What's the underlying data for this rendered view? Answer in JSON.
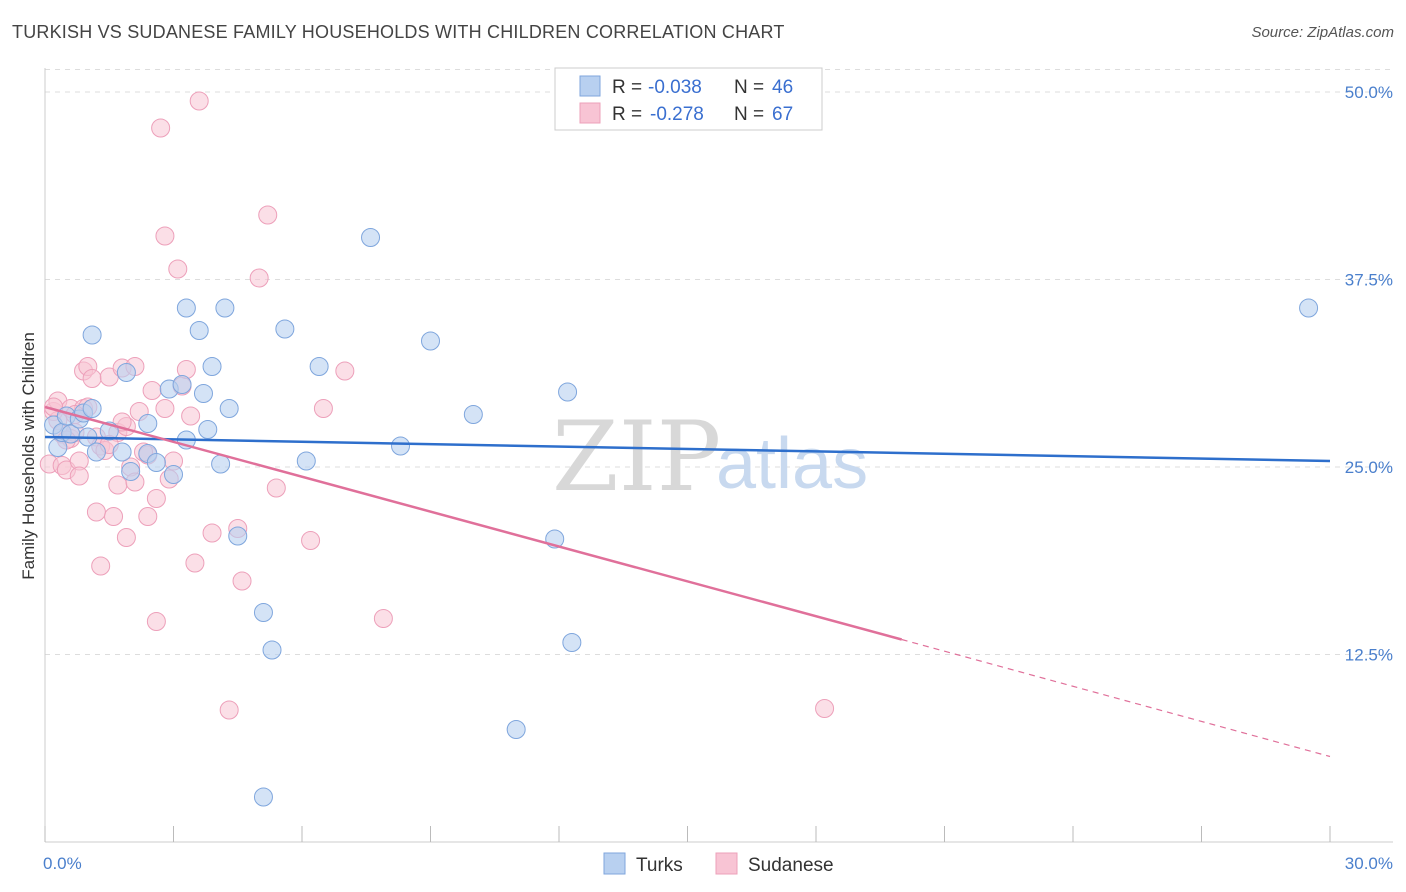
{
  "title": "TURKISH VS SUDANESE FAMILY HOUSEHOLDS WITH CHILDREN CORRELATION CHART",
  "source": "Source: ZipAtlas.com",
  "watermark": {
    "zip": "ZIP",
    "atlas": "atlas"
  },
  "colors": {
    "turks_fill": "#b8d0f0",
    "turks_stroke": "#7fa6dd",
    "turks_line": "#2e6fcc",
    "sudanese_fill": "#f8c4d4",
    "sudanese_stroke": "#eda0ba",
    "sudanese_line": "#e0709a",
    "grid": "#dddddd"
  },
  "legend": {
    "turks": {
      "r_label": "R =",
      "r_value": "-0.038",
      "n_label": "N =",
      "n_value": "46"
    },
    "sudanese": {
      "r_label": "R =",
      "r_value": "-0.278",
      "n_label": "N =",
      "n_value": "67"
    }
  },
  "chart_data": {
    "type": "scatter",
    "title": "TURKISH VS SUDANESE FAMILY HOUSEHOLDS WITH CHILDREN CORRELATION CHART",
    "xlabel": "",
    "ylabel": "Family Households with Children",
    "xlim": [
      0,
      30
    ],
    "ylim": [
      0,
      52
    ],
    "x_tick_labels": [
      "0.0%",
      "30.0%"
    ],
    "y_ticks": [
      12.5,
      25.0,
      37.5,
      50.0
    ],
    "y_tick_labels": [
      "12.5%",
      "25.0%",
      "37.5%",
      "50.0%"
    ],
    "legend_position": "top-center",
    "series": [
      {
        "name": "Turks",
        "trend": {
          "x0": 0,
          "y0": 27.0,
          "x1": 30,
          "y1": 25.4
        },
        "points": [
          [
            0.2,
            27.8
          ],
          [
            0.3,
            26.3
          ],
          [
            0.4,
            27.3
          ],
          [
            0.5,
            28.4
          ],
          [
            0.6,
            27.2
          ],
          [
            0.8,
            28.2
          ],
          [
            0.9,
            28.6
          ],
          [
            1.0,
            27.0
          ],
          [
            1.1,
            28.9
          ],
          [
            1.2,
            26.0
          ],
          [
            1.1,
            33.8
          ],
          [
            1.9,
            31.3
          ],
          [
            1.8,
            26.0
          ],
          [
            1.5,
            27.4
          ],
          [
            2.0,
            24.7
          ],
          [
            2.4,
            25.9
          ],
          [
            2.4,
            27.9
          ],
          [
            2.6,
            25.3
          ],
          [
            2.9,
            30.2
          ],
          [
            3.0,
            24.5
          ],
          [
            3.2,
            30.5
          ],
          [
            3.3,
            35.6
          ],
          [
            3.3,
            26.8
          ],
          [
            3.6,
            34.1
          ],
          [
            3.7,
            29.9
          ],
          [
            3.8,
            27.5
          ],
          [
            3.9,
            31.7
          ],
          [
            4.1,
            25.2
          ],
          [
            4.2,
            35.6
          ],
          [
            4.3,
            28.9
          ],
          [
            4.5,
            20.4
          ],
          [
            5.1,
            15.3
          ],
          [
            5.3,
            12.8
          ],
          [
            5.1,
            3.0
          ],
          [
            5.6,
            34.2
          ],
          [
            6.1,
            25.4
          ],
          [
            6.4,
            31.7
          ],
          [
            7.6,
            40.3
          ],
          [
            8.3,
            26.4
          ],
          [
            9.0,
            33.4
          ],
          [
            10.0,
            28.5
          ],
          [
            11.0,
            7.5
          ],
          [
            11.9,
            20.2
          ],
          [
            12.2,
            30.0
          ],
          [
            12.3,
            13.3
          ],
          [
            29.5,
            35.6
          ]
        ]
      },
      {
        "name": "Sudanese",
        "trend": {
          "x0": 0,
          "y0": 29.0,
          "x1": 20,
          "y1": 13.5,
          "dashed_to_x": 30,
          "dashed_to_y": 5.7
        },
        "points": [
          [
            0.1,
            25.2
          ],
          [
            0.2,
            28.7
          ],
          [
            0.3,
            29.4
          ],
          [
            0.3,
            28.1
          ],
          [
            0.4,
            27.2
          ],
          [
            0.4,
            25.1
          ],
          [
            0.5,
            24.8
          ],
          [
            0.6,
            26.9
          ],
          [
            0.6,
            28.9
          ],
          [
            0.7,
            27.3
          ],
          [
            0.8,
            25.4
          ],
          [
            0.8,
            24.4
          ],
          [
            0.9,
            31.4
          ],
          [
            0.9,
            28.9
          ],
          [
            1.0,
            31.7
          ],
          [
            1.1,
            30.9
          ],
          [
            1.2,
            27.0
          ],
          [
            1.2,
            22.0
          ],
          [
            1.3,
            26.4
          ],
          [
            1.3,
            18.4
          ],
          [
            1.4,
            26.1
          ],
          [
            1.5,
            31.0
          ],
          [
            1.6,
            21.7
          ],
          [
            1.7,
            27.3
          ],
          [
            1.7,
            23.8
          ],
          [
            1.8,
            31.6
          ],
          [
            1.9,
            20.3
          ],
          [
            1.9,
            27.7
          ],
          [
            2.0,
            25.0
          ],
          [
            2.1,
            31.7
          ],
          [
            2.1,
            24.0
          ],
          [
            2.2,
            28.7
          ],
          [
            2.4,
            25.8
          ],
          [
            2.4,
            21.7
          ],
          [
            2.5,
            30.1
          ],
          [
            2.6,
            22.9
          ],
          [
            2.6,
            14.7
          ],
          [
            2.7,
            47.6
          ],
          [
            2.8,
            40.4
          ],
          [
            2.8,
            28.9
          ],
          [
            2.9,
            24.2
          ],
          [
            3.0,
            25.4
          ],
          [
            3.1,
            38.2
          ],
          [
            3.2,
            30.4
          ],
          [
            3.3,
            31.5
          ],
          [
            3.4,
            28.4
          ],
          [
            3.5,
            18.6
          ],
          [
            3.6,
            49.4
          ],
          [
            3.9,
            20.6
          ],
          [
            4.3,
            8.8
          ],
          [
            4.5,
            20.9
          ],
          [
            4.6,
            17.4
          ],
          [
            5.0,
            37.6
          ],
          [
            5.2,
            41.8
          ],
          [
            5.4,
            23.6
          ],
          [
            6.2,
            20.1
          ],
          [
            6.5,
            28.9
          ],
          [
            7.0,
            31.4
          ],
          [
            7.9,
            14.9
          ],
          [
            18.2,
            8.9
          ],
          [
            0.5,
            26.8
          ],
          [
            1.0,
            29.0
          ],
          [
            0.7,
            28.5
          ],
          [
            1.5,
            26.5
          ],
          [
            2.3,
            26.0
          ],
          [
            0.2,
            29.0
          ],
          [
            1.8,
            28.0
          ]
        ]
      }
    ]
  },
  "bottom_legend": [
    {
      "label": "Turks"
    },
    {
      "label": "Sudanese"
    }
  ]
}
